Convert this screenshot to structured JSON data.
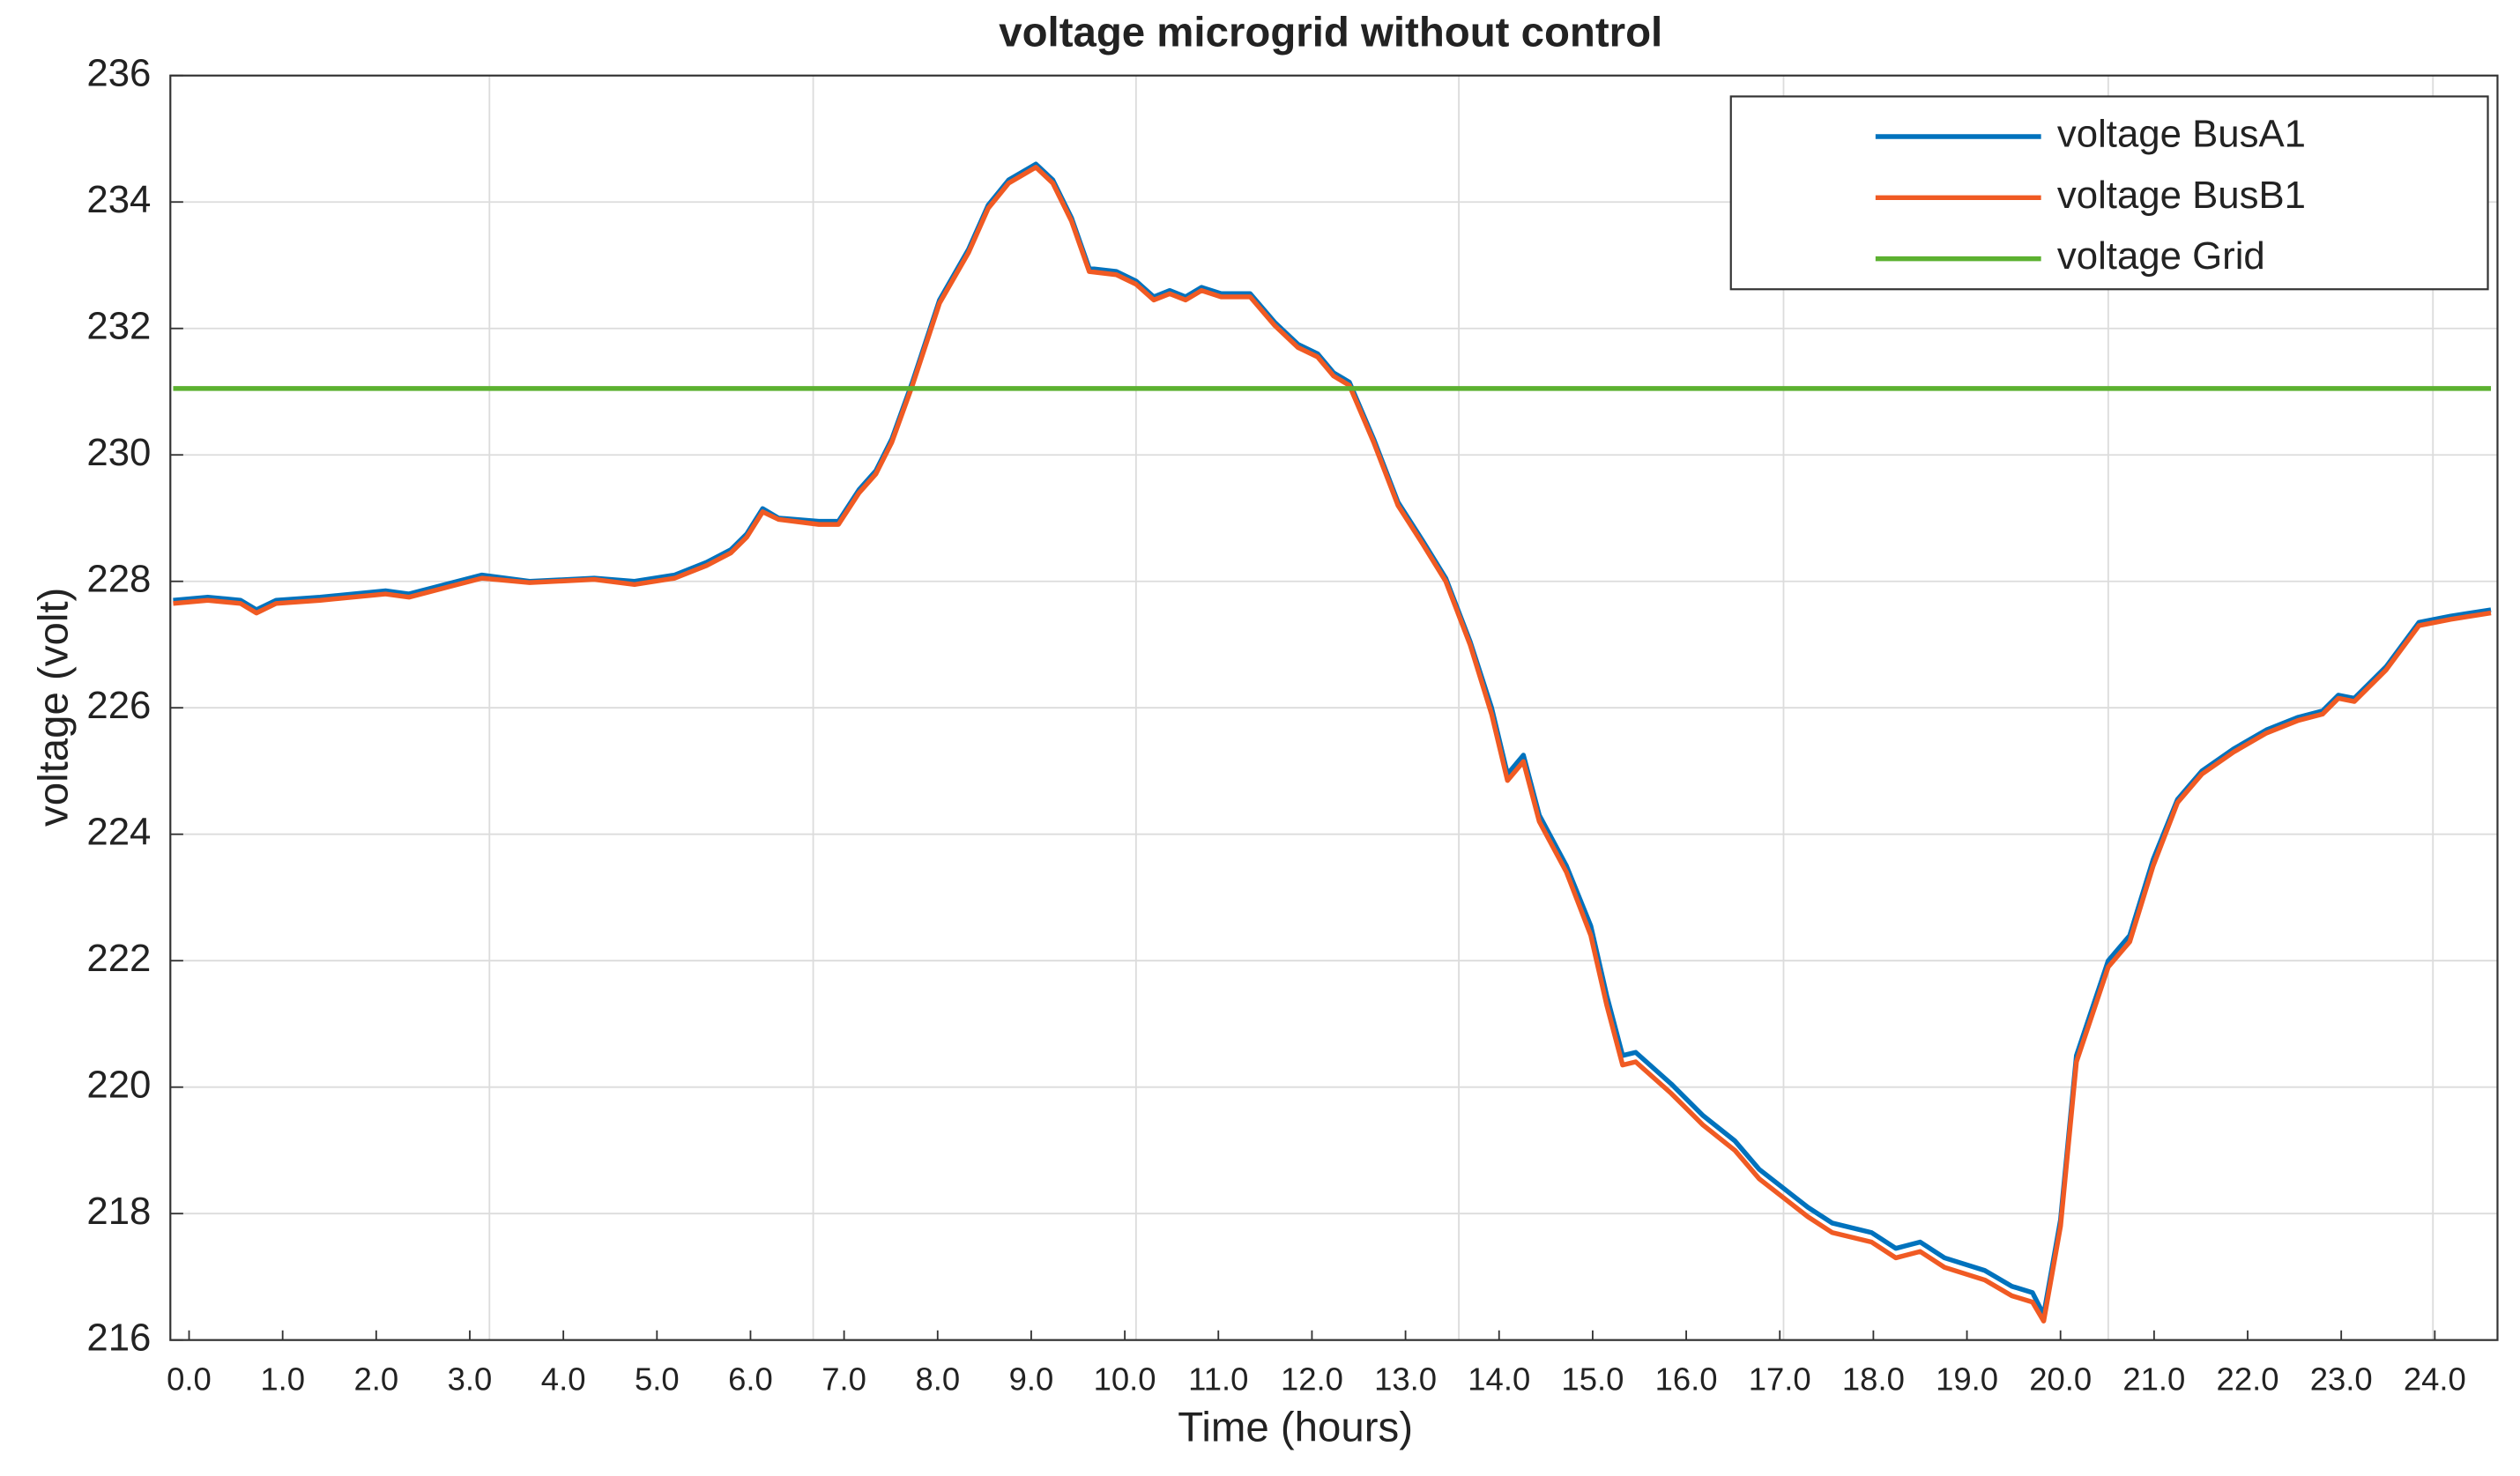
{
  "chart_data": {
    "type": "line",
    "title": "voltage microgrid without control",
    "xlabel": "Time (hours)",
    "ylabel": "voltage (volt)",
    "xlim": [
      -0.2,
      24.67
    ],
    "ylim": [
      216,
      236
    ],
    "xticks": [
      {
        "value": 0,
        "label": "0.0"
      },
      {
        "value": 1,
        "label": "1.0"
      },
      {
        "value": 2,
        "label": "2.0"
      },
      {
        "value": 3,
        "label": "3.0"
      },
      {
        "value": 4,
        "label": "4.0"
      },
      {
        "value": 5,
        "label": "5.0"
      },
      {
        "value": 6,
        "label": "6.0"
      },
      {
        "value": 7,
        "label": "7.0"
      },
      {
        "value": 8,
        "label": "8.0"
      },
      {
        "value": 9,
        "label": "9.0"
      },
      {
        "value": 10,
        "label": "10.0"
      },
      {
        "value": 11,
        "label": "11.0"
      },
      {
        "value": 12,
        "label": "12.0"
      },
      {
        "value": 13,
        "label": "13.0"
      },
      {
        "value": 14,
        "label": "14.0"
      },
      {
        "value": 15,
        "label": "15.0"
      },
      {
        "value": 16,
        "label": "16.0"
      },
      {
        "value": 17,
        "label": "17.0"
      },
      {
        "value": 18,
        "label": "18.0"
      },
      {
        "value": 19,
        "label": "19.0"
      },
      {
        "value": 20,
        "label": "20.0"
      },
      {
        "value": 21,
        "label": "21.0"
      },
      {
        "value": 22,
        "label": "22.0"
      },
      {
        "value": 23,
        "label": "23.0"
      },
      {
        "value": 24,
        "label": "24.0"
      }
    ],
    "xgrid": [
      3.21,
      6.67,
      10.12,
      13.57,
      17.04,
      20.51,
      23.98
    ],
    "yticks": [
      216,
      218,
      220,
      222,
      224,
      226,
      228,
      230,
      232,
      234,
      236
    ],
    "grid": true,
    "legend": "upper right",
    "x": [
      -0.17,
      0.2,
      0.55,
      0.72,
      0.93,
      1.4,
      2.1,
      2.35,
      3.13,
      3.64,
      4.33,
      4.76,
      5.19,
      5.53,
      5.79,
      5.96,
      6.13,
      6.3,
      6.73,
      6.94,
      7.16,
      7.34,
      7.51,
      7.73,
      8.02,
      8.33,
      8.54,
      8.76,
      9.05,
      9.23,
      9.43,
      9.62,
      9.91,
      10.12,
      10.31,
      10.48,
      10.65,
      10.82,
      11.03,
      11.34,
      11.6,
      11.85,
      12.06,
      12.23,
      12.4,
      12.66,
      12.92,
      13.18,
      13.43,
      13.69,
      13.92,
      14.09,
      14.26,
      14.43,
      14.72,
      14.98,
      15.15,
      15.32,
      15.46,
      15.84,
      16.18,
      16.52,
      16.78,
      17.04,
      17.3,
      17.56,
      17.98,
      18.24,
      18.5,
      18.76,
      19.19,
      19.48,
      19.7,
      19.82,
      20.0,
      20.17,
      20.51,
      20.74,
      20.99,
      21.25,
      21.51,
      21.85,
      22.2,
      22.54,
      22.8,
      22.97,
      23.14,
      23.48,
      23.83,
      24.17,
      24.6
    ],
    "series": [
      {
        "name": "voltage BusA1",
        "color": "#0072bd",
        "values": [
          227.7,
          227.75,
          227.7,
          227.55,
          227.7,
          227.75,
          227.85,
          227.8,
          228.1,
          228.0,
          228.05,
          228.0,
          228.1,
          228.3,
          228.5,
          228.75,
          229.15,
          229.0,
          228.95,
          228.95,
          229.45,
          229.75,
          230.25,
          231.15,
          232.45,
          233.25,
          233.95,
          234.35,
          234.6,
          234.35,
          233.75,
          232.95,
          232.9,
          232.75,
          232.5,
          232.6,
          232.5,
          232.65,
          232.55,
          232.55,
          232.1,
          231.75,
          231.6,
          231.3,
          231.15,
          230.25,
          229.25,
          228.65,
          228.05,
          227.05,
          226.0,
          224.95,
          225.25,
          224.3,
          223.5,
          222.55,
          221.45,
          220.5,
          220.55,
          220.05,
          219.55,
          219.15,
          218.7,
          218.4,
          218.1,
          217.85,
          217.7,
          217.45,
          217.55,
          217.3,
          217.1,
          216.85,
          216.75,
          216.4,
          217.9,
          220.5,
          222.0,
          222.4,
          223.6,
          224.55,
          225.0,
          225.35,
          225.65,
          225.85,
          225.95,
          226.2,
          226.15,
          226.65,
          227.35,
          227.45,
          227.55
        ]
      },
      {
        "name": "voltage BusB1",
        "color": "#f05a23",
        "values": [
          227.65,
          227.7,
          227.65,
          227.5,
          227.65,
          227.7,
          227.8,
          227.75,
          228.05,
          227.98,
          228.03,
          227.95,
          228.05,
          228.25,
          228.45,
          228.7,
          229.1,
          228.98,
          228.9,
          228.9,
          229.4,
          229.7,
          230.2,
          231.1,
          232.4,
          233.2,
          233.9,
          234.3,
          234.55,
          234.3,
          233.7,
          232.9,
          232.85,
          232.7,
          232.45,
          232.55,
          232.45,
          232.6,
          232.5,
          232.5,
          232.05,
          231.7,
          231.55,
          231.25,
          231.1,
          230.2,
          229.2,
          228.6,
          228.0,
          227.0,
          225.9,
          224.85,
          225.15,
          224.2,
          223.4,
          222.4,
          221.3,
          220.35,
          220.4,
          219.9,
          219.4,
          219.0,
          218.55,
          218.25,
          217.95,
          217.7,
          217.55,
          217.3,
          217.4,
          217.15,
          216.95,
          216.7,
          216.6,
          216.3,
          217.8,
          220.4,
          221.9,
          222.3,
          223.5,
          224.5,
          224.95,
          225.3,
          225.6,
          225.8,
          225.9,
          226.15,
          226.1,
          226.6,
          227.3,
          227.4,
          227.5
        ]
      },
      {
        "name": "voltage Grid",
        "color": "#5cb130",
        "values": [
          231.05,
          231.05,
          231.05,
          231.05,
          231.05,
          231.05,
          231.05,
          231.05,
          231.05,
          231.05,
          231.05,
          231.05,
          231.05,
          231.05,
          231.05,
          231.05,
          231.05,
          231.05,
          231.05,
          231.05,
          231.05,
          231.05,
          231.05,
          231.05,
          231.05,
          231.05,
          231.05,
          231.05,
          231.05,
          231.05,
          231.05,
          231.05,
          231.05,
          231.05,
          231.05,
          231.05,
          231.05,
          231.05,
          231.05,
          231.05,
          231.05,
          231.05,
          231.05,
          231.05,
          231.05,
          231.05,
          231.05,
          231.05,
          231.05,
          231.05,
          231.05,
          231.05,
          231.05,
          231.05,
          231.05,
          231.05,
          231.05,
          231.05,
          231.05,
          231.05,
          231.05,
          231.05,
          231.05,
          231.05,
          231.05,
          231.05,
          231.05,
          231.05,
          231.05,
          231.05,
          231.05,
          231.05,
          231.05,
          231.05,
          231.05,
          231.05,
          231.05,
          231.05,
          231.05,
          231.05,
          231.05,
          231.05,
          231.05,
          231.05,
          231.05,
          231.05,
          231.05,
          231.05,
          231.05,
          231.05,
          231.05
        ]
      }
    ]
  }
}
